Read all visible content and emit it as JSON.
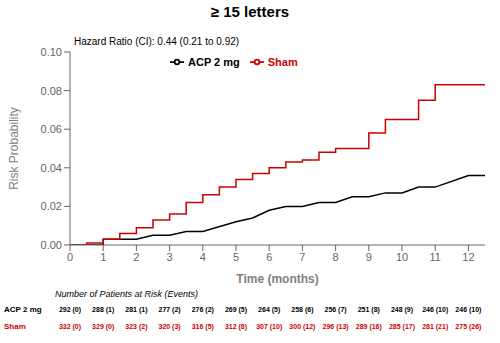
{
  "chart_data": {
    "type": "line",
    "title": "≥ 15 letters",
    "x_label": "Time (months)",
    "y_label": "Risk Probability",
    "annotations": [
      "Hazard Ratio (CI): 0.44 (0.21 to 0.92)"
    ],
    "xlim": [
      0,
      12.5
    ],
    "ylim": [
      0.0,
      0.1
    ],
    "xticks": [
      0,
      1,
      2,
      3,
      4,
      5,
      6,
      7,
      8,
      9,
      10,
      11,
      12
    ],
    "yticks": [
      {
        "value": 0.0,
        "label": "0.00"
      },
      {
        "value": 0.02,
        "label": "0.02"
      },
      {
        "value": 0.04,
        "label": "0.04"
      },
      {
        "value": 0.06,
        "label": "0.06"
      },
      {
        "value": 0.08,
        "label": "0.08"
      },
      {
        "value": 0.1,
        "label": "0.10"
      }
    ],
    "legend": "upper left",
    "grid": false,
    "series": [
      {
        "name": "ACP 2 mg",
        "color": "#000000",
        "x": [
          0,
          1.0,
          1.0,
          1.5,
          1.5,
          2.0,
          2.0,
          2.5,
          2.5,
          3.0,
          3.0,
          3.5,
          3.5,
          4.0,
          4.0,
          5.0,
          5.0,
          5.5,
          5.5,
          6.0,
          6.0,
          6.5,
          6.5,
          7.0,
          7.0,
          7.5,
          7.5,
          8.0,
          8.0,
          8.5,
          8.5,
          9.0,
          9.0,
          9.5,
          9.5,
          10.0,
          10.0,
          10.5,
          10.5,
          11.0,
          11.0,
          12.0,
          12.0,
          12.5
        ],
        "values": [
          0.0,
          0.0,
          0.003,
          0.003,
          0.003,
          0.003,
          0.003,
          0.005,
          0.005,
          0.005,
          0.005,
          0.007,
          0.007,
          0.007,
          0.007,
          0.012,
          0.012,
          0.014,
          0.014,
          0.018,
          0.018,
          0.02,
          0.02,
          0.02,
          0.02,
          0.022,
          0.022,
          0.022,
          0.022,
          0.025,
          0.025,
          0.025,
          0.025,
          0.027,
          0.027,
          0.027,
          0.027,
          0.03,
          0.03,
          0.03,
          0.03,
          0.036,
          0.036,
          0.036
        ]
      },
      {
        "name": "Sham",
        "color": "#cc0000",
        "x": [
          0,
          0.5,
          0.5,
          1.0,
          1.0,
          1.5,
          1.5,
          2.0,
          2.0,
          2.5,
          2.5,
          3.0,
          3.0,
          3.5,
          3.5,
          4.0,
          4.0,
          4.5,
          4.5,
          5.0,
          5.0,
          5.5,
          5.5,
          6.0,
          6.0,
          6.5,
          6.5,
          7.0,
          7.0,
          7.5,
          7.5,
          8.0,
          8.0,
          8.5,
          8.5,
          9.0,
          9.0,
          9.5,
          9.5,
          10.0,
          10.0,
          10.5,
          10.5,
          11.0,
          11.0,
          11.5,
          11.5,
          12.0,
          12.0,
          12.5
        ],
        "values": [
          0.0,
          0.0,
          0.001,
          0.001,
          0.003,
          0.003,
          0.006,
          0.006,
          0.009,
          0.009,
          0.013,
          0.013,
          0.016,
          0.016,
          0.022,
          0.022,
          0.026,
          0.026,
          0.03,
          0.03,
          0.034,
          0.034,
          0.037,
          0.037,
          0.04,
          0.04,
          0.043,
          0.043,
          0.044,
          0.044,
          0.048,
          0.048,
          0.05,
          0.05,
          0.05,
          0.05,
          0.058,
          0.058,
          0.065,
          0.065,
          0.065,
          0.065,
          0.075,
          0.075,
          0.083,
          0.083,
          0.083,
          0.083,
          0.083,
          0.083
        ]
      }
    ],
    "risk_table": {
      "header": "Number of Patients at Risk (Events)",
      "values": [
        [
          "292 (0)",
          "288 (1)",
          "281 (1)",
          "277 (2)",
          "276 (2)",
          "269 (5)",
          "264 (5)",
          "258 (6)",
          "256 (7)",
          "251 (8)",
          "248 (9)",
          "246 (10)",
          "246 (10)"
        ],
        [
          "332 (0)",
          "329 (0)",
          "323 (2)",
          "320 (3)",
          "316 (5)",
          "312 (8)",
          "307 (10)",
          "300 (12)",
          "296 (13)",
          "289 (16)",
          "285 (17)",
          "281 (21)",
          "275 (26)"
        ]
      ]
    }
  }
}
